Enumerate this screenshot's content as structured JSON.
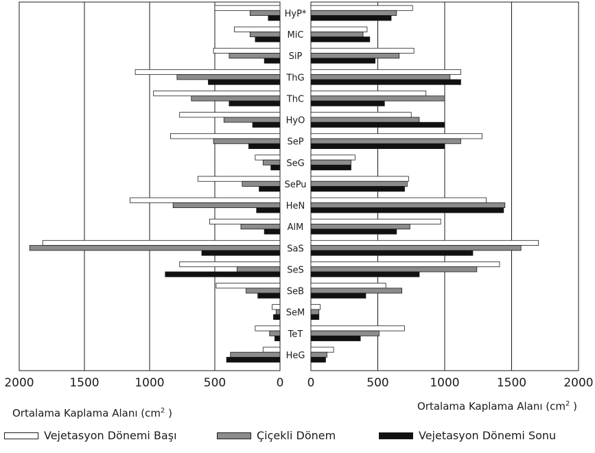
{
  "chart_data": {
    "type": "bar",
    "orientation": "horizontal-butterfly",
    "categories": [
      "HyP*",
      "MiC",
      "SiP",
      "ThG",
      "ThC",
      "HyO",
      "SeP",
      "SeG",
      "SePu",
      "HeN",
      "AlM",
      "SaS",
      "SeS",
      "SeB",
      "SeM",
      "TeT",
      "HeG"
    ],
    "series": [
      {
        "name": "Vejetasyon Dönemi Başı",
        "color": "#ffffff",
        "left": [
          500,
          350,
          510,
          1110,
          970,
          770,
          840,
          190,
          630,
          1150,
          540,
          1820,
          770,
          490,
          60,
          190,
          130
        ],
        "right": [
          760,
          420,
          770,
          1120,
          860,
          750,
          1280,
          330,
          730,
          1310,
          970,
          1700,
          1410,
          560,
          70,
          700,
          170
        ]
      },
      {
        "name": "Çiçekli Dönem",
        "color": "#8c8c8c",
        "left": [
          230,
          230,
          390,
          790,
          680,
          430,
          510,
          130,
          290,
          820,
          300,
          1920,
          330,
          260,
          30,
          80,
          380
        ],
        "right": [
          640,
          390,
          660,
          1040,
          1000,
          810,
          1120,
          300,
          720,
          1450,
          740,
          1570,
          1240,
          680,
          60,
          510,
          120
        ]
      },
      {
        "name": "Vejetasyon Dönemi Sonu",
        "color": "#111111",
        "left": [
          90,
          190,
          120,
          550,
          390,
          210,
          240,
          70,
          160,
          180,
          120,
          600,
          880,
          170,
          50,
          40,
          410
        ],
        "right": [
          600,
          440,
          480,
          1120,
          550,
          1000,
          1000,
          300,
          700,
          1440,
          640,
          1210,
          810,
          410,
          60,
          370,
          110
        ]
      }
    ],
    "left_axis": {
      "ticks": [
        "2000",
        "1500",
        "1000",
        "500",
        "0"
      ],
      "lim": [
        0,
        2000
      ],
      "reversed": true
    },
    "right_axis": {
      "ticks": [
        "0",
        "500",
        "1000",
        "1500",
        "2000"
      ],
      "lim": [
        0,
        2000
      ]
    },
    "xlabel_left": "Ortalama Kaplama Alanı (cm",
    "xlabel_right": "Ortalama Kaplama Alanı (cm",
    "xlabel_sup": "2",
    "xlabel_close": " )",
    "grid": "vertical",
    "legend_position": "bottom"
  },
  "legend": [
    {
      "label": "Vejetasyon Dönemi Başı",
      "color": "#ffffff"
    },
    {
      "label": "Çiçekli Dönem",
      "color": "#8c8c8c"
    },
    {
      "label": "Vejetasyon Dönemi Sonu",
      "color": "#111111"
    }
  ]
}
